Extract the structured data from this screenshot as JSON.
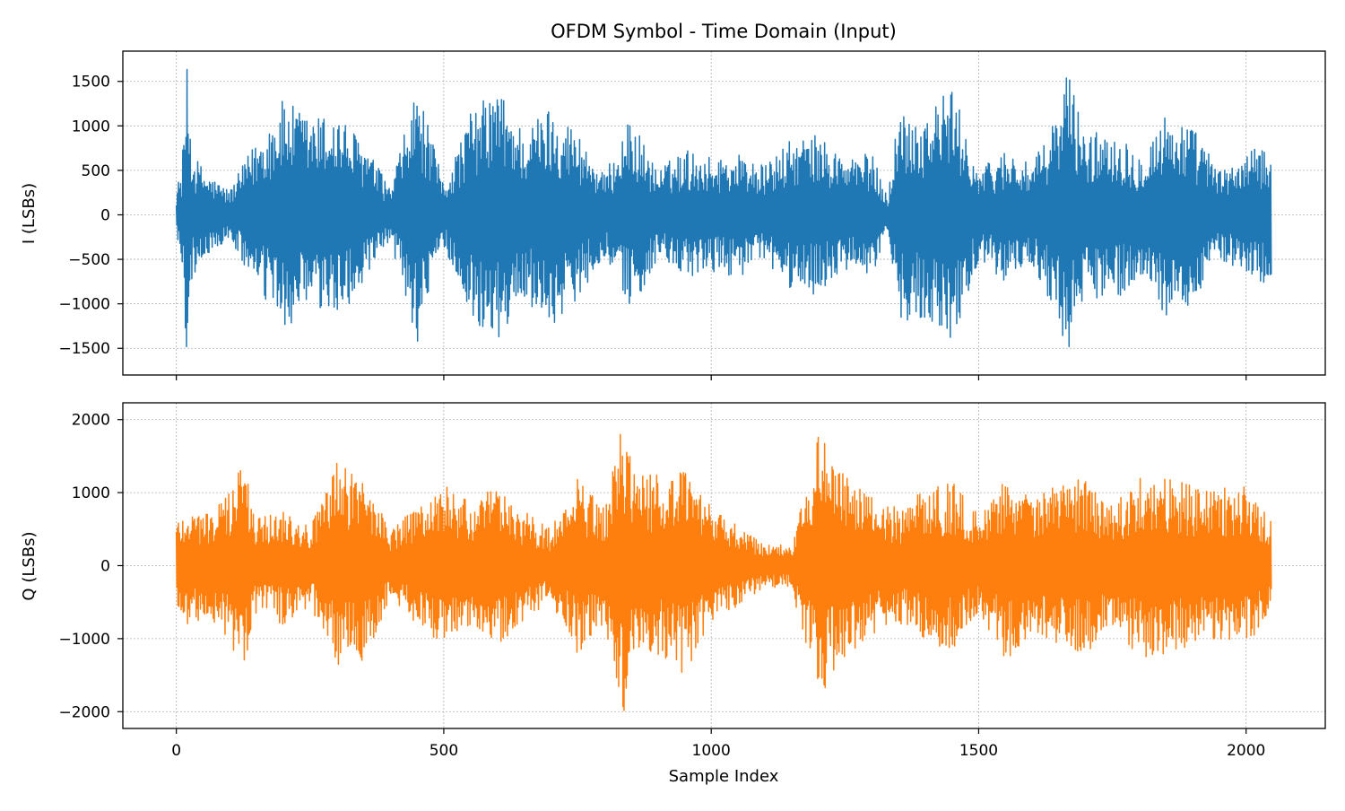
{
  "chart_data": [
    {
      "type": "line",
      "panel": "top",
      "title": "OFDM Symbol - Time Domain (Input)",
      "xlabel": "",
      "ylabel": "I (LSBs)",
      "xlim": [
        -100,
        2148
      ],
      "ylim": [
        -1800,
        1840
      ],
      "xticks": [
        0,
        500,
        1000,
        1500,
        2000
      ],
      "xtick_labels": [
        "",
        "",
        "",
        "",
        ""
      ],
      "yticks": [
        -1500,
        -1000,
        -500,
        0,
        500,
        1000,
        1500
      ],
      "ytick_labels": [
        "−1500",
        "−1000",
        "−500",
        "0",
        "500",
        "1000",
        "1500"
      ],
      "grid": true,
      "n_samples": 2048,
      "series": [
        {
          "color": "#1f77b4",
          "envelope_x": [
            0,
            10,
            20,
            30,
            60,
            100,
            150,
            200,
            250,
            300,
            350,
            400,
            450,
            500,
            550,
            600,
            650,
            700,
            750,
            800,
            850,
            900,
            950,
            1000,
            1050,
            1100,
            1150,
            1200,
            1250,
            1300,
            1330,
            1350,
            1400,
            1450,
            1500,
            1550,
            1600,
            1650,
            1665,
            1700,
            1750,
            1800,
            1850,
            1900,
            1950,
            2000,
            2047
          ],
          "envelope_upper": [
            300,
            520,
            1640,
            700,
            450,
            280,
            850,
            1300,
            1100,
            1150,
            820,
            300,
            1450,
            350,
            1150,
            1450,
            950,
            1250,
            950,
            450,
            1100,
            500,
            750,
            650,
            700,
            550,
            850,
            900,
            650,
            700,
            200,
            1200,
            1150,
            1450,
            500,
            750,
            550,
            1200,
            1690,
            900,
            1000,
            700,
            1150,
            1000,
            500,
            680,
            850
          ],
          "envelope_lower": [
            -300,
            -520,
            -1640,
            -700,
            -450,
            -280,
            -850,
            -1300,
            -1100,
            -1150,
            -820,
            -300,
            -1450,
            -350,
            -1150,
            -1450,
            -950,
            -1250,
            -950,
            -450,
            -1100,
            -500,
            -750,
            -650,
            -700,
            -550,
            -850,
            -900,
            -650,
            -700,
            -200,
            -1200,
            -1150,
            -1450,
            -500,
            -750,
            -550,
            -1200,
            -1650,
            -900,
            -1000,
            -700,
            -1150,
            -1000,
            -500,
            -680,
            -820
          ]
        }
      ]
    },
    {
      "type": "line",
      "panel": "bottom",
      "title": "",
      "xlabel": "Sample Index",
      "ylabel": "Q (LSBs)",
      "xlim": [
        -100,
        2148
      ],
      "ylim": [
        -2230,
        2230
      ],
      "xticks": [
        0,
        500,
        1000,
        1500,
        2000
      ],
      "xtick_labels": [
        "0",
        "500",
        "1000",
        "1500",
        "2000"
      ],
      "yticks": [
        -2000,
        -1000,
        0,
        1000,
        2000
      ],
      "ytick_labels": [
        "−2000",
        "−1000",
        "0",
        "1000",
        "2000"
      ],
      "grid": true,
      "n_samples": 2048,
      "series": [
        {
          "color": "#ff7f0e",
          "envelope_x": [
            0,
            20,
            60,
            100,
            110,
            130,
            150,
            200,
            250,
            300,
            350,
            400,
            450,
            500,
            550,
            600,
            650,
            700,
            750,
            800,
            835,
            860,
            900,
            950,
            1000,
            1050,
            1100,
            1150,
            1200,
            1250,
            1300,
            1350,
            1400,
            1450,
            1500,
            1550,
            1600,
            1650,
            1700,
            1750,
            1800,
            1850,
            1900,
            1950,
            2000,
            2047
          ],
          "envelope_upper": [
            650,
            800,
            750,
            1000,
            1450,
            1350,
            650,
            820,
            550,
            1400,
            1300,
            500,
            800,
            1150,
            850,
            1100,
            750,
            500,
            1200,
            800,
            2000,
            1300,
            1250,
            1300,
            800,
            550,
            300,
            300,
            1820,
            1250,
            950,
            800,
            1100,
            1150,
            700,
            1300,
            950,
            1100,
            1250,
            800,
            1300,
            1200,
            1100,
            1050,
            1150,
            600
          ],
          "envelope_lower": [
            -650,
            -800,
            -750,
            -1000,
            -1400,
            -1350,
            -650,
            -820,
            -550,
            -1400,
            -1300,
            -500,
            -800,
            -1100,
            -850,
            -1100,
            -750,
            -500,
            -1200,
            -800,
            -2050,
            -1300,
            -1250,
            -1500,
            -800,
            -550,
            -300,
            -300,
            -1850,
            -1250,
            -950,
            -800,
            -1100,
            -1150,
            -700,
            -1300,
            -950,
            -1100,
            -1250,
            -800,
            -1300,
            -1200,
            -1100,
            -1050,
            -1150,
            -650
          ]
        }
      ]
    }
  ]
}
